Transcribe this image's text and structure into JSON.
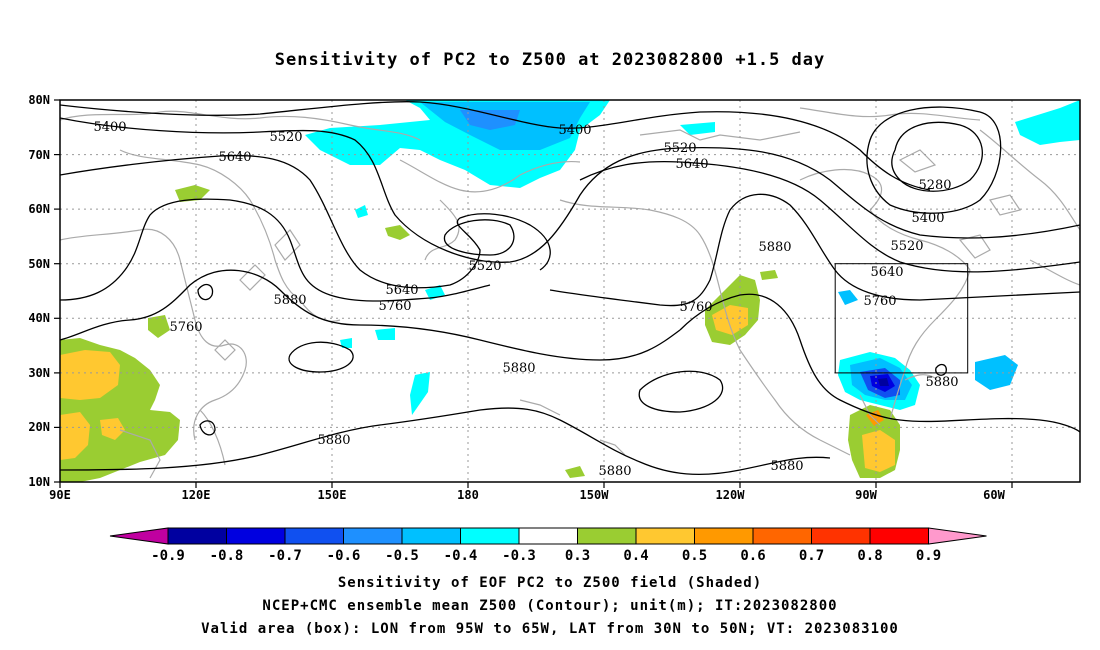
{
  "title": "Sensitivity of PC2 to Z500 at 2023082800 +1.5 day",
  "lat_labels": [
    "80N",
    "70N",
    "60N",
    "50N",
    "40N",
    "30N",
    "20N",
    "10N"
  ],
  "lon_labels": [
    "90E",
    "120E",
    "150E",
    "180",
    "150W",
    "120W",
    "90W",
    "60W"
  ],
  "contour_labels": [
    "5400",
    "5520",
    "5640",
    "5400",
    "5520",
    "5640",
    "5280",
    "5400",
    "5520",
    "5880",
    "5640",
    "5760",
    "5520",
    "5640",
    "5760",
    "5880",
    "5760",
    "5760",
    "5880",
    "5880",
    "5880",
    "5880",
    "5880"
  ],
  "colorbar": {
    "labels": [
      "-0.9",
      "-0.8",
      "-0.7",
      "-0.6",
      "-0.5",
      "-0.4",
      "-0.3",
      "0.3",
      "0.4",
      "0.5",
      "0.6",
      "0.7",
      "0.8",
      "0.9"
    ],
    "colors": [
      "#0000a0",
      "#0000e0",
      "#1050f0",
      "#1e90ff",
      "#00c0ff",
      "#00ffff",
      "#ffffff",
      "#9acd32",
      "#ffc830",
      "#ff9900",
      "#ff6600",
      "#ff3300",
      "#ff0000"
    ],
    "low_extend_color": "#c000a0",
    "high_extend_color": "#ff99cc"
  },
  "footer": {
    "line1": "Sensitivity of EOF PC2 to Z500 field (Shaded)",
    "line2": "NCEP+CMC ensemble mean Z500 (Contour); unit(m); IT:2023082800",
    "line3": "Valid area (box): LON from 95W to 65W, LAT from 30N to 50N; VT: 2023083100"
  },
  "valid_box": {
    "lon_from": "95W",
    "lon_to": "65W",
    "lat_from": "30N",
    "lat_to": "50N"
  }
}
